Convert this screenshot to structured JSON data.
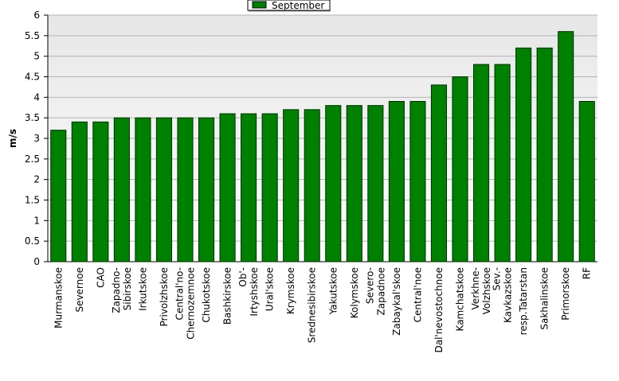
{
  "chart_data": {
    "type": "bar",
    "y_label": "m/s",
    "categories": [
      "Murmanskoe",
      "Severnoe",
      "CAO",
      "Zapadno-Sibirskoe",
      "Irkutskoe",
      "Privolzhskoe",
      "Central'no-Chernozemnoe",
      "Chukotskoe",
      "Bashkirskoe",
      "Ob'-Irtyshskoe",
      "Ural'skoe",
      "Krymskoe",
      "Srednesibirskoe",
      "Yakutskoe",
      "Kolymskoe",
      "Severo-Zapadnoe",
      "Zabaykal'skoe",
      "Central'noe",
      "Dal'nevostochnoe",
      "Kamchatskoe",
      "Verkhne-Volzhskoe",
      "Sev.-Kavkazskoe",
      "resp.Tatarstan",
      "Sakhalinskoe",
      "Primorskoe",
      "RF"
    ],
    "series": [
      {
        "name": "September",
        "color": "#008000",
        "values": [
          3.2,
          3.4,
          3.4,
          3.5,
          3.5,
          3.5,
          3.5,
          3.5,
          3.6,
          3.6,
          3.6,
          3.7,
          3.7,
          3.8,
          3.8,
          3.8,
          3.9,
          3.9,
          4.3,
          4.5,
          4.8,
          4.8,
          5.2,
          5.2,
          5.6,
          3.9
        ]
      }
    ],
    "ylim": [
      0,
      6
    ],
    "yticks": [
      0,
      0.5,
      1,
      1.5,
      2,
      2.5,
      3,
      3.5,
      4,
      4.5,
      5,
      5.5,
      6
    ],
    "grid": true,
    "legend": "top"
  }
}
